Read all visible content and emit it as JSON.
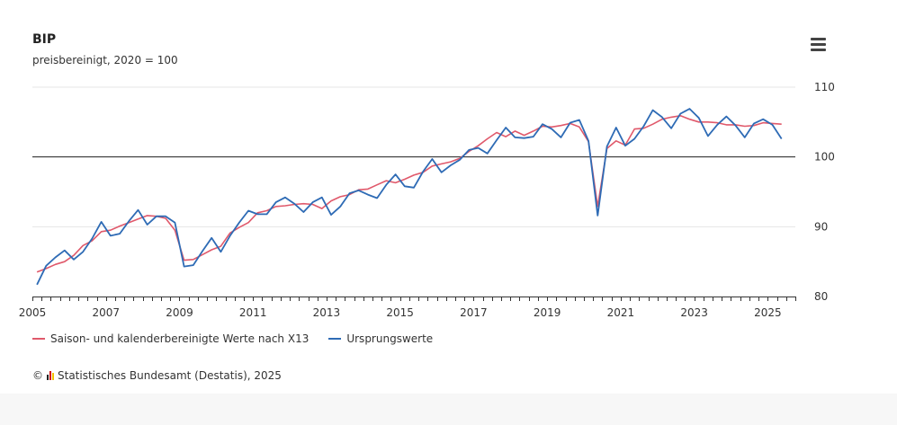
{
  "title": "BIP",
  "subtitle": "preisbereinigt, 2020 = 100",
  "menu_icon": "hamburger-menu-icon",
  "credits": "Statistisches Bundesamt (Destatis), 2025",
  "credits_symbol": "©",
  "colors": {
    "adjusted": "#e0596b",
    "original": "#2e6bb5",
    "axis": "#333333",
    "grid": "#e6e6e6",
    "reference": "#222222"
  },
  "chart_data": {
    "type": "line",
    "title": "BIP",
    "subtitle": "preisbereinigt, 2020 = 100",
    "xlabel": "",
    "ylabel": "",
    "xlim": [
      2005.0,
      2025.75
    ],
    "ylim": [
      80,
      110
    ],
    "x_ticks": [
      "2005",
      "2007",
      "2009",
      "2011",
      "2013",
      "2015",
      "2017",
      "2019",
      "2021",
      "2023",
      "2025"
    ],
    "y_ticks": [
      "80",
      "90",
      "100",
      "110"
    ],
    "reference_line": 100,
    "legend_position": "bottom-left",
    "grid": true,
    "x": [
      2005.125,
      2005.375,
      2005.625,
      2005.875,
      2006.125,
      2006.375,
      2006.625,
      2006.875,
      2007.125,
      2007.375,
      2007.625,
      2007.875,
      2008.125,
      2008.375,
      2008.625,
      2008.875,
      2009.125,
      2009.375,
      2009.625,
      2009.875,
      2010.125,
      2010.375,
      2010.625,
      2010.875,
      2011.125,
      2011.375,
      2011.625,
      2011.875,
      2012.125,
      2012.375,
      2012.625,
      2012.875,
      2013.125,
      2013.375,
      2013.625,
      2013.875,
      2014.125,
      2014.375,
      2014.625,
      2014.875,
      2015.125,
      2015.375,
      2015.625,
      2015.875,
      2016.125,
      2016.375,
      2016.625,
      2016.875,
      2017.125,
      2017.375,
      2017.625,
      2017.875,
      2018.125,
      2018.375,
      2018.625,
      2018.875,
      2019.125,
      2019.375,
      2019.625,
      2019.875,
      2020.125,
      2020.375,
      2020.625,
      2020.875,
      2021.125,
      2021.375,
      2021.625,
      2021.875,
      2022.125,
      2022.375,
      2022.625,
      2022.875,
      2023.125,
      2023.375,
      2023.625,
      2023.875,
      2024.125,
      2024.375,
      2024.625,
      2024.875,
      2025.125,
      2025.375
    ],
    "series": [
      {
        "name": "Saison- und kalenderbereinigte Werte nach X13",
        "color": "#e0596b",
        "values": [
          83.5,
          84.0,
          84.6,
          85.0,
          85.9,
          87.3,
          88.0,
          89.3,
          89.5,
          90.1,
          90.6,
          91.1,
          91.6,
          91.5,
          91.2,
          89.5,
          85.2,
          85.3,
          86.0,
          86.7,
          87.2,
          89.1,
          89.9,
          90.6,
          92.0,
          92.3,
          92.9,
          93.0,
          93.2,
          93.3,
          93.2,
          92.6,
          93.7,
          94.3,
          94.6,
          95.3,
          95.4,
          96.0,
          96.6,
          96.3,
          96.8,
          97.4,
          97.8,
          98.7,
          99.0,
          99.3,
          99.8,
          100.8,
          101.6,
          102.6,
          103.5,
          102.9,
          103.7,
          103.1,
          103.7,
          104.4,
          104.3,
          104.5,
          104.8,
          104.3,
          102.2,
          92.9,
          101.2,
          102.3,
          101.7,
          104.0,
          104.1,
          104.7,
          105.4,
          105.7,
          105.9,
          105.4,
          105.0,
          105.0,
          104.9,
          104.6,
          104.6,
          104.4,
          104.5,
          104.9,
          104.8,
          104.7
        ]
      },
      {
        "name": "Ursprungswerte",
        "color": "#2e6bb5",
        "values": [
          81.7,
          84.4,
          85.6,
          86.6,
          85.3,
          86.4,
          88.3,
          90.7,
          88.7,
          89.0,
          90.8,
          92.4,
          90.3,
          91.5,
          91.5,
          90.6,
          84.3,
          84.5,
          86.5,
          88.4,
          86.4,
          88.7,
          90.6,
          92.3,
          91.8,
          91.8,
          93.5,
          94.2,
          93.3,
          92.1,
          93.5,
          94.2,
          91.7,
          92.9,
          94.8,
          95.2,
          94.6,
          94.1,
          96.0,
          97.5,
          95.8,
          95.6,
          97.9,
          99.7,
          97.8,
          98.8,
          99.6,
          101.0,
          101.3,
          100.5,
          102.4,
          104.2,
          102.8,
          102.7,
          102.9,
          104.7,
          104.0,
          102.8,
          104.9,
          105.3,
          102.3,
          91.6,
          101.5,
          104.2,
          101.6,
          102.6,
          104.4,
          106.7,
          105.7,
          104.1,
          106.2,
          106.9,
          105.6,
          103.0,
          104.6,
          105.8,
          104.5,
          102.8,
          104.8,
          105.4,
          104.6,
          102.6
        ]
      }
    ]
  }
}
